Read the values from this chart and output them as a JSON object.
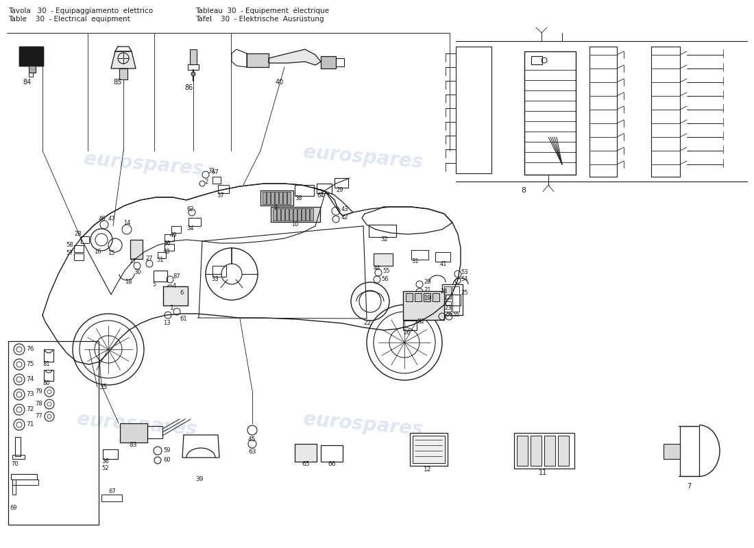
{
  "background_color": "#ffffff",
  "line_color": "#1a1a1a",
  "watermark_color": "#c8d4e8",
  "fig_width": 11.0,
  "fig_height": 8.0,
  "dpi": 100,
  "header": {
    "line1_left": "Tavola   30  - Equipaggiamento  elettrico",
    "line2_left": "Table     30  - Electrical  equipment",
    "line1_right": "Tableau  30  - Equipement  électrique",
    "line2_right": "Tafel      30  - Elektrische  Ausrüstung"
  }
}
